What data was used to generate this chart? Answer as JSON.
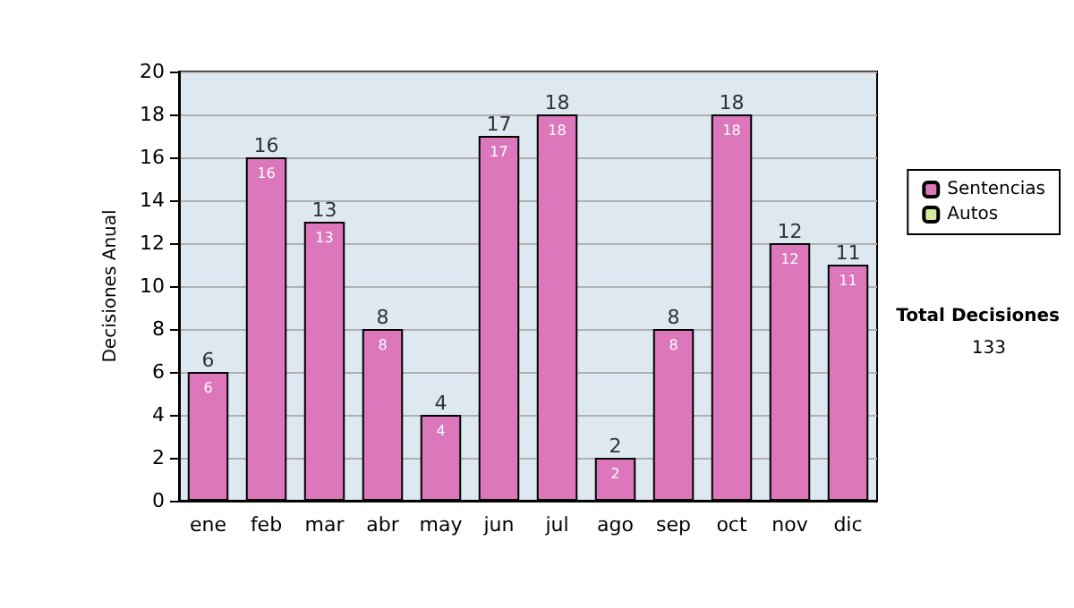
{
  "chart_data": {
    "type": "bar",
    "ylabel": "Decisiones Anual",
    "categories": [
      "ene",
      "feb",
      "mar",
      "abr",
      "may",
      "jun",
      "jul",
      "ago",
      "sep",
      "oct",
      "nov",
      "dic"
    ],
    "series": [
      {
        "name": "Sentencias",
        "color": "#dd77bb",
        "values": [
          6,
          16,
          13,
          8,
          4,
          17,
          18,
          2,
          8,
          18,
          12,
          11
        ]
      },
      {
        "name": "Autos",
        "color": "#d6eb9e",
        "values": [
          null,
          null,
          null,
          null,
          null,
          null,
          null,
          null,
          null,
          null,
          null,
          null
        ]
      }
    ],
    "stacked": true,
    "data_labels": true,
    "totals": [
      "6",
      "16",
      "13",
      "8",
      "4",
      "17",
      "18",
      "2",
      "8",
      "18",
      "12",
      "11"
    ],
    "ylim": [
      0,
      20
    ],
    "yticks": [
      0,
      2,
      4,
      6,
      8,
      10,
      12,
      14,
      16,
      18,
      20
    ],
    "grid": "y",
    "legend": "right",
    "annotations": [
      "Total Decisiones",
      "133"
    ]
  }
}
